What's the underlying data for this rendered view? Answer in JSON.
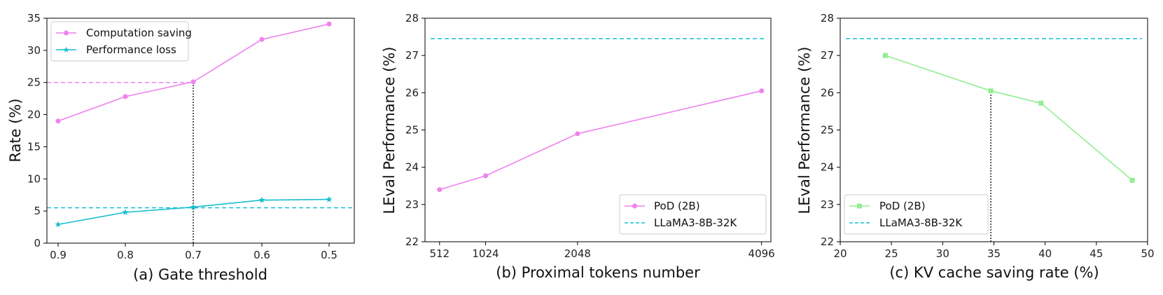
{
  "chart_data": [
    {
      "type": "line",
      "xlabel": "(a) Gate threshold",
      "ylabel": "Rate (%)",
      "categories": [
        "0.9",
        "0.8",
        "0.7",
        "0.6",
        "0.5"
      ],
      "ylim": [
        0,
        35
      ],
      "yticks": [
        "0",
        "5",
        "10",
        "15",
        "20",
        "25",
        "30",
        "35"
      ],
      "series": [
        {
          "name": "Computation saving",
          "values": [
            19.0,
            22.8,
            25.1,
            31.7,
            34.1
          ],
          "color": "#ee82ee",
          "marker": "circle"
        },
        {
          "name": "Performance loss",
          "values": [
            2.9,
            4.8,
            5.6,
            6.7,
            6.8
          ],
          "color": "#17becf",
          "marker": "star"
        }
      ],
      "reference_lines": [
        {
          "value": 25.0,
          "color": "#ee82ee",
          "style": "dashed",
          "to_category": "0.7"
        },
        {
          "value": 5.5,
          "color": "#17becf",
          "style": "dashed"
        }
      ],
      "vertical_marker": {
        "category": "0.7",
        "from": 0,
        "to": 25.1
      },
      "legend_location": "top-left"
    },
    {
      "type": "line",
      "xlabel": "(b) Proximal tokens number",
      "ylabel": "LEval Performance (%)",
      "xlim": [
        350,
        4200
      ],
      "xticks": [
        512,
        1024,
        2048,
        4096
      ],
      "ylim": [
        22,
        28
      ],
      "yticks": [
        "22",
        "23",
        "24",
        "25",
        "26",
        "27",
        "28"
      ],
      "series": [
        {
          "name": "PoD (2B)",
          "x": [
            512,
            1024,
            2048,
            4096
          ],
          "y": [
            23.4,
            23.77,
            24.9,
            26.05
          ],
          "color": "#ee82ee",
          "marker": "circle"
        }
      ],
      "reference_lines": [
        {
          "name": "LLaMA3-8B-32K",
          "value": 27.45,
          "color": "#17becf",
          "style": "dashed"
        }
      ],
      "legend_location": "bottom-right"
    },
    {
      "type": "line",
      "xlabel": "(c) KV cache saving rate (%)",
      "ylabel": "LEval Performance (%)",
      "xlim": [
        20,
        50
      ],
      "xticks": [
        20,
        25,
        30,
        35,
        40,
        45,
        50
      ],
      "ylim": [
        22,
        28
      ],
      "yticks": [
        "22",
        "23",
        "24",
        "25",
        "26",
        "27",
        "28"
      ],
      "series": [
        {
          "name": "PoD (2B)",
          "x": [
            24.4,
            34.7,
            39.6,
            48.5
          ],
          "y": [
            27.0,
            26.05,
            25.72,
            23.65
          ],
          "color": "#90ee90",
          "marker": "square"
        }
      ],
      "reference_lines": [
        {
          "name": "LLaMA3-8B-32K",
          "value": 27.45,
          "color": "#17becf",
          "style": "dashed"
        }
      ],
      "vertical_marker": {
        "x": 34.7,
        "from": 22,
        "to": 26.05
      },
      "legend_location": "bottom-left"
    }
  ]
}
